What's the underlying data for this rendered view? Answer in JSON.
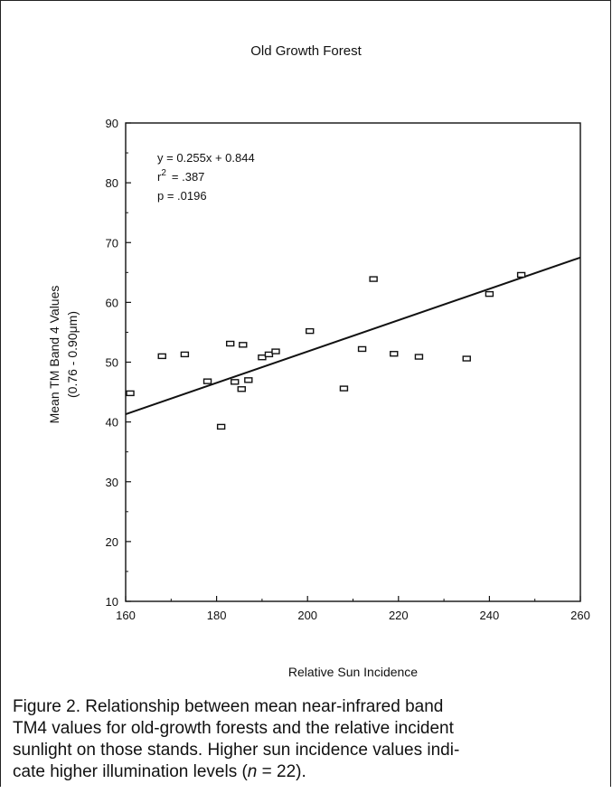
{
  "chart_data": {
    "type": "scatter",
    "title": "Old Growth Forest",
    "xlabel": "Relative Sun Incidence",
    "ylabel_line1": "Mean TM Band 4 Values",
    "ylabel_line2": "(0.76 - 0.90μm)",
    "xlim": [
      160,
      260
    ],
    "ylim": [
      10,
      90
    ],
    "xticks": [
      "160",
      "180",
      "200",
      "220",
      "240",
      "260"
    ],
    "yticks": [
      "10",
      "20",
      "30",
      "40",
      "50",
      "60",
      "70",
      "80",
      "90"
    ],
    "points": [
      {
        "x": 161,
        "y": 44.8
      },
      {
        "x": 168,
        "y": 51.0
      },
      {
        "x": 173,
        "y": 51.3
      },
      {
        "x": 178,
        "y": 46.8
      },
      {
        "x": 181,
        "y": 39.2
      },
      {
        "x": 183,
        "y": 53.1
      },
      {
        "x": 184,
        "y": 46.7
      },
      {
        "x": 185.5,
        "y": 45.5
      },
      {
        "x": 185.8,
        "y": 52.9
      },
      {
        "x": 187,
        "y": 47.0
      },
      {
        "x": 190,
        "y": 50.8
      },
      {
        "x": 191.5,
        "y": 51.3
      },
      {
        "x": 193,
        "y": 51.8
      },
      {
        "x": 200.5,
        "y": 55.2
      },
      {
        "x": 208,
        "y": 45.6
      },
      {
        "x": 212,
        "y": 52.2
      },
      {
        "x": 214.5,
        "y": 63.9
      },
      {
        "x": 219,
        "y": 51.4
      },
      {
        "x": 224.5,
        "y": 50.9
      },
      {
        "x": 235,
        "y": 50.6
      },
      {
        "x": 240,
        "y": 61.4
      },
      {
        "x": 247,
        "y": 64.6
      }
    ],
    "regression": {
      "slope": 0.255,
      "intercept": 0.844,
      "equation": "y = 0.255x + 0.844",
      "r2_label": "r",
      "r2_sup": "2",
      "r2_value": "= .387",
      "p_text": "p = .0196"
    },
    "grid": false,
    "legend": "none"
  },
  "caption": {
    "line1": "Figure 2. Relationship between mean near-infrared band",
    "line2": "TM4 values for old-growth forests and the relative incident",
    "line3": "sunlight on those stands. Higher sun incidence values indi-",
    "line4_a": "cate higher illumination levels (",
    "line4_n": "n",
    "line4_b": " = 22)."
  }
}
